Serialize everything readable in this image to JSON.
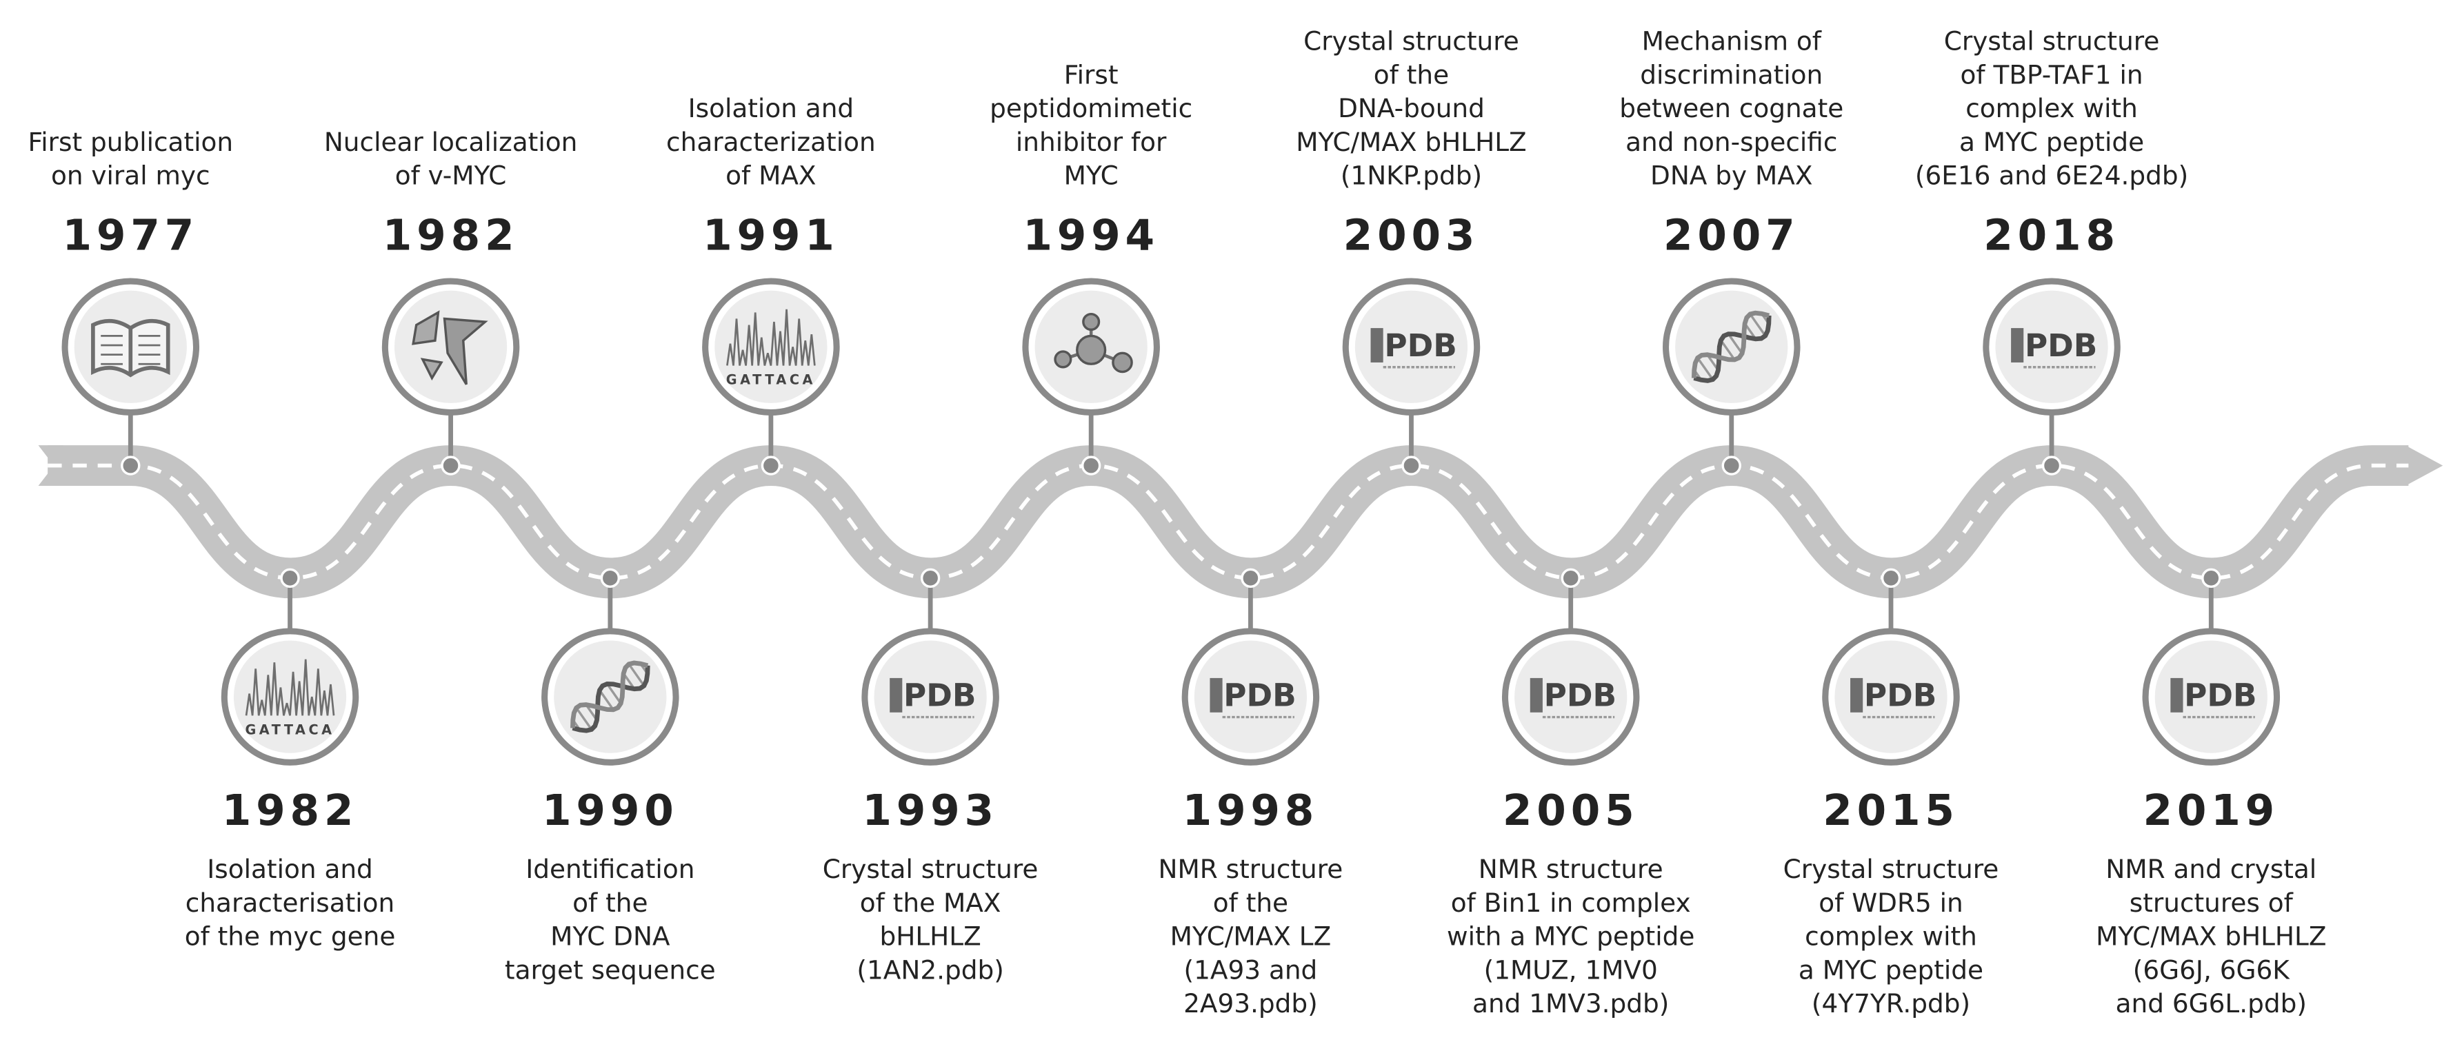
{
  "top_events": [
    {
      "year": "1977",
      "lines": [
        "First publication",
        "on viral myc"
      ],
      "icon": "book"
    },
    {
      "year": "1982",
      "lines": [
        "Nuclear localization",
        "of v-MYC"
      ],
      "icon": "cells"
    },
    {
      "year": "1991",
      "lines": [
        "Isolation and",
        "characterization",
        "of MAX"
      ],
      "icon": "chromatogram",
      "icon_text": "GATTACA"
    },
    {
      "year": "1994",
      "lines": [
        "First",
        "peptidomimetic",
        "inhibitor for",
        "MYC"
      ],
      "icon": "molecule"
    },
    {
      "year": "2003",
      "lines": [
        "Crystal structure",
        "of the",
        "DNA-bound",
        "MYC/MAX bHLHLZ",
        "(1NKP.pdb)"
      ],
      "icon": "pdb",
      "icon_text": "PDB"
    },
    {
      "year": "2007",
      "lines": [
        "Mechanism of",
        "discrimination",
        "between cognate",
        "and non-specific",
        "DNA by MAX"
      ],
      "icon": "dna"
    },
    {
      "year": "2018",
      "lines": [
        "Crystal structure",
        "of TBP-TAF1 in",
        "complex with",
        "a MYC peptide",
        "(6E16 and 6E24.pdb)"
      ],
      "icon": "pdb",
      "icon_text": "PDB"
    }
  ],
  "bottom_events": [
    {
      "year": "1982",
      "lines": [
        "Isolation and",
        "characterisation",
        "of the myc gene"
      ],
      "icon": "chromatogram",
      "icon_text": "GATTACA"
    },
    {
      "year": "1990",
      "lines": [
        "Identification",
        "of the",
        "MYC DNA",
        "target sequence"
      ],
      "icon": "dna"
    },
    {
      "year": "1993",
      "lines": [
        "Crystal structure",
        "of the MAX",
        "bHLHLZ",
        "(1AN2.pdb)"
      ],
      "icon": "pdb",
      "icon_text": "PDB"
    },
    {
      "year": "1998",
      "lines": [
        "NMR structure",
        "of the",
        "MYC/MAX LZ",
        "(1A93 and",
        "2A93.pdb)"
      ],
      "icon": "pdb",
      "icon_text": "PDB"
    },
    {
      "year": "2005",
      "lines": [
        "NMR structure",
        "of Bin1 in complex",
        "with a MYC peptide",
        "(1MUZ, 1MV0",
        "and 1MV3.pdb)"
      ],
      "icon": "pdb",
      "icon_text": "PDB"
    },
    {
      "year": "2015",
      "lines": [
        "Crystal structure",
        "of WDR5 in",
        "complex with",
        "a MYC peptide",
        "(4Y7YR.pdb)"
      ],
      "icon": "pdb",
      "icon_text": "PDB"
    },
    {
      "year": "2019",
      "lines": [
        "NMR and crystal",
        "structures of",
        "MYC/MAX bHLHLZ",
        "(6G6J, 6G6K",
        "and 6G6L.pdb)"
      ],
      "icon": "pdb",
      "icon_text": "PDB"
    }
  ]
}
